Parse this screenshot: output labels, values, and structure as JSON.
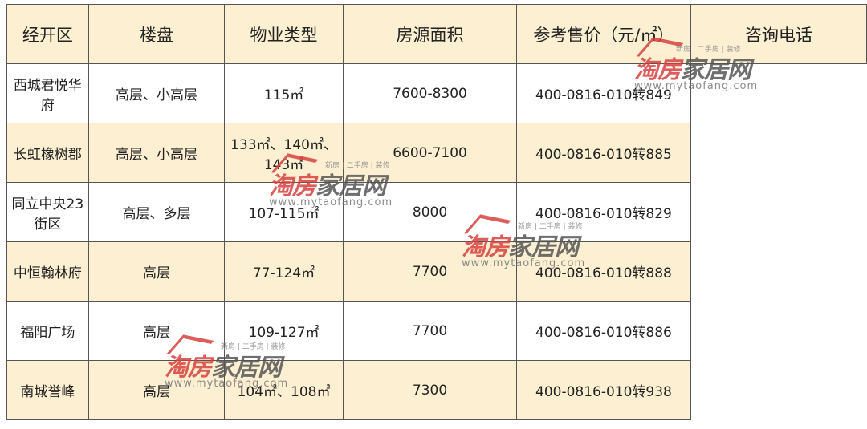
{
  "table": {
    "district": "经开区",
    "headers": [
      "楼盘",
      "物业类型",
      "房源面积",
      "参考售价（元/㎡）",
      "咨询电话"
    ],
    "rows": [
      [
        "西城君悦华府",
        "高层、小高层",
        "115㎡",
        "7600-8300",
        "400-0816-010转849"
      ],
      [
        "长虹橡树郡",
        "高层、小高层",
        "133㎡、140㎡、143㎡",
        "6600-7100",
        "400-0816-010转885"
      ],
      [
        "同立中央23街区",
        "高层、多层",
        "107-115㎡",
        "8000",
        "400-0816-010转829"
      ],
      [
        "中恒翰林府",
        "高层",
        "77-124㎡",
        "7700",
        "400-0816-010转888"
      ],
      [
        "福阳广场",
        "高层",
        "109-127㎡",
        "7700",
        "400-0816-010转886"
      ],
      [
        "南城誉峰",
        "高层",
        "104㎡、108㎡",
        "7300",
        "400-0816-010转938"
      ]
    ]
  },
  "watermark": {
    "brand_red": "淘房",
    "brand_dark": "家居网",
    "tagline": "新房 | 二手房 | 装修",
    "url": "www.mytaofang.com"
  },
  "colors": {
    "header_bg": "#fdf0d2",
    "border": "#555555",
    "logo_red": "#d84040"
  }
}
